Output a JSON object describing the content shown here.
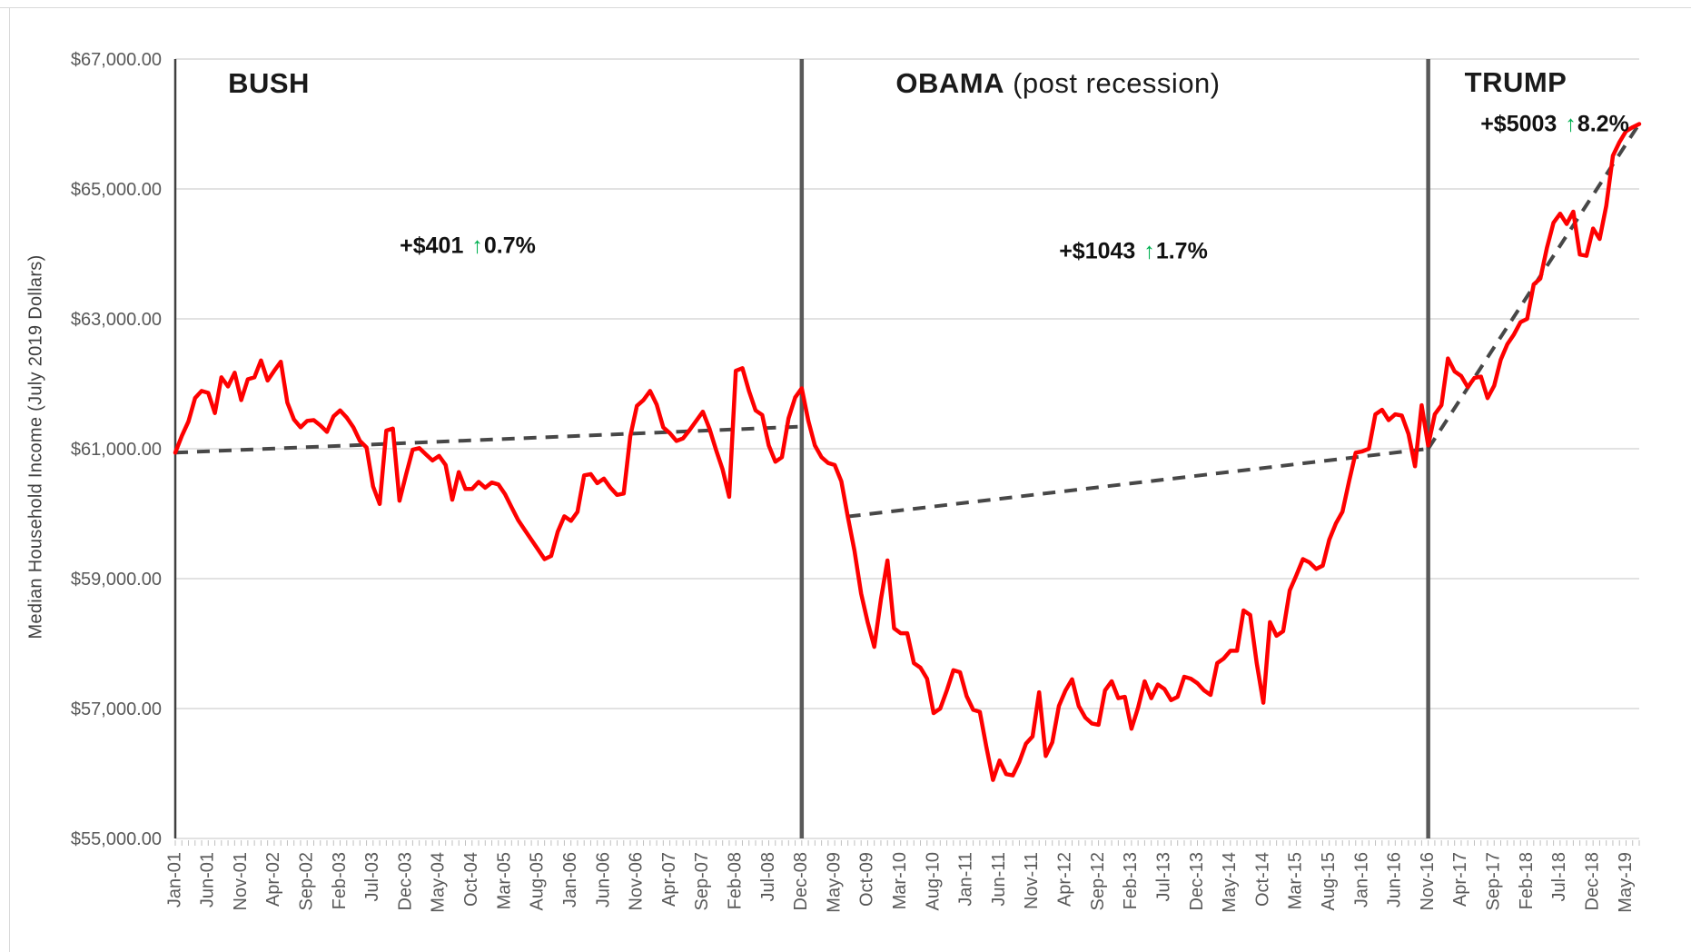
{
  "page": {
    "background": "#ffffff"
  },
  "sections": {
    "bush": {
      "title": "BUSH",
      "annotation": {
        "amount": "+$401",
        "arrow": "↑",
        "percent": "0.7%"
      }
    },
    "obama": {
      "title_bold": "OBAMA",
      "title_rest": " (post recession)",
      "annotation": {
        "amount": "+$1043",
        "arrow": "↑",
        "percent": "1.7%"
      }
    },
    "trump": {
      "title": "TRUMP",
      "annotation": {
        "amount": "+$5003",
        "arrow": "↑",
        "percent": "8.2%"
      }
    }
  },
  "chart_data": {
    "type": "line",
    "title": "",
    "xlabel": "",
    "ylabel": "Median Household Income (July 2019 Dollars)",
    "ylim": [
      55000,
      67000
    ],
    "ytick_step": 2000,
    "ytick_labels": [
      "$55,000.00",
      "$57,000.00",
      "$59,000.00",
      "$61,000.00",
      "$63,000.00",
      "$65,000.00",
      "$67,000.00"
    ],
    "xtick_month_interval": 5,
    "xtick_labels": [
      "Jan-01",
      "Jun-01",
      "Nov-01",
      "Apr-02",
      "Sep-02",
      "Feb-03",
      "Jul-03",
      "Dec-03",
      "May-04",
      "Oct-04",
      "Mar-05",
      "Aug-05",
      "Jan-06",
      "Jun-06",
      "Nov-06",
      "Apr-07",
      "Sep-07",
      "Feb-08",
      "Jul-08",
      "Dec-08",
      "May-09",
      "Oct-09",
      "Mar-10",
      "Aug-10",
      "Jan-11",
      "Jun-11",
      "Nov-11",
      "Apr-12",
      "Sep-12",
      "Feb-13",
      "Jul-13",
      "Dec-13",
      "May-14",
      "Oct-14",
      "Mar-15",
      "Aug-15",
      "Jan-16",
      "Jun-16",
      "Nov-16",
      "Apr-17",
      "Sep-17",
      "Feb-18",
      "Jul-18",
      "Dec-18",
      "May-19"
    ],
    "months_start": "Jan-2001",
    "months_end": "Jul-2019",
    "grid": true,
    "legend": "none",
    "series": [
      {
        "name": "Median Household Income",
        "color": "#fe0000",
        "values": [
          60940,
          61200,
          61420,
          61780,
          61890,
          61860,
          61550,
          62100,
          61960,
          62170,
          61750,
          62070,
          62100,
          62360,
          62050,
          62200,
          62340,
          61710,
          61450,
          61330,
          61430,
          61440,
          61360,
          61260,
          61500,
          61590,
          61480,
          61330,
          61120,
          61020,
          60420,
          60150,
          61280,
          61310,
          60200,
          60600,
          60985,
          61010,
          60915,
          60820,
          60890,
          60750,
          60215,
          60640,
          60380,
          60380,
          60490,
          60400,
          60480,
          60450,
          60300,
          60100,
          59900,
          59750,
          59600,
          59450,
          59300,
          59350,
          59725,
          59960,
          59890,
          60030,
          60590,
          60610,
          60470,
          60540,
          60400,
          60290,
          60310,
          61190,
          61660,
          61750,
          61890,
          61680,
          61330,
          61240,
          61120,
          61160,
          61290,
          61430,
          61570,
          61310,
          60985,
          60680,
          60260,
          62200,
          62240,
          61890,
          61590,
          61520,
          61050,
          60800,
          60870,
          61470,
          61790,
          61930,
          61430,
          61050,
          60870,
          60780,
          60750,
          60500,
          59950,
          59430,
          58770,
          58330,
          57950,
          58680,
          59280,
          58235,
          58160,
          58160,
          57700,
          57630,
          57460,
          56930,
          57000,
          57280,
          57590,
          57560,
          57190,
          56980,
          56950,
          56410,
          55900,
          56200,
          55990,
          55970,
          56180,
          56460,
          56570,
          57250,
          56270,
          56480,
          57040,
          57280,
          57450,
          57040,
          56860,
          56770,
          56750,
          57280,
          57420,
          57160,
          57180,
          56690,
          57010,
          57420,
          57160,
          57370,
          57300,
          57130,
          57180,
          57490,
          57460,
          57390,
          57280,
          57210,
          57700,
          57770,
          57890,
          57890,
          58510,
          58440,
          57700,
          57090,
          58330,
          58120,
          58190,
          58820,
          59050,
          59300,
          59250,
          59150,
          59200,
          59600,
          59850,
          60030,
          60500,
          60940,
          60960,
          61000,
          61530,
          61600,
          61440,
          61530,
          61510,
          61230,
          60730,
          61670,
          61050,
          61530,
          61670,
          62390,
          62190,
          62120,
          61950,
          62090,
          62110,
          61780,
          61970,
          62370,
          62610,
          62760,
          62950,
          63000,
          63530,
          63620,
          64090,
          64480,
          64620,
          64460,
          64650,
          63990,
          63970,
          64390,
          64230,
          64740,
          65510,
          65720,
          65890,
          65950,
          66000
        ]
      }
    ],
    "trendlines": [
      {
        "label": "bush-trend",
        "start_month": 0,
        "start_value": 60940,
        "end_month": 95,
        "end_value": 61341
      },
      {
        "label": "obama-trend",
        "start_month": 102,
        "start_value": 59957,
        "end_month": 190,
        "end_value": 61000
      },
      {
        "label": "trump-trend",
        "start_month": 190,
        "start_value": 61000,
        "end_month": 222,
        "end_value": 66003
      }
    ],
    "dividers": [
      {
        "label": "bush-obama-divider",
        "month": 95
      },
      {
        "label": "obama-trump-divider",
        "month": 190
      }
    ],
    "colors": {
      "line": "#fe0000",
      "trend_dash": "#474747",
      "divider": "#595959",
      "grid": "#d9d9d9",
      "y_axis": "#404040",
      "tick": "#bfbfbf",
      "axis_label": "#595959",
      "arrow_green": "#00b050"
    }
  }
}
